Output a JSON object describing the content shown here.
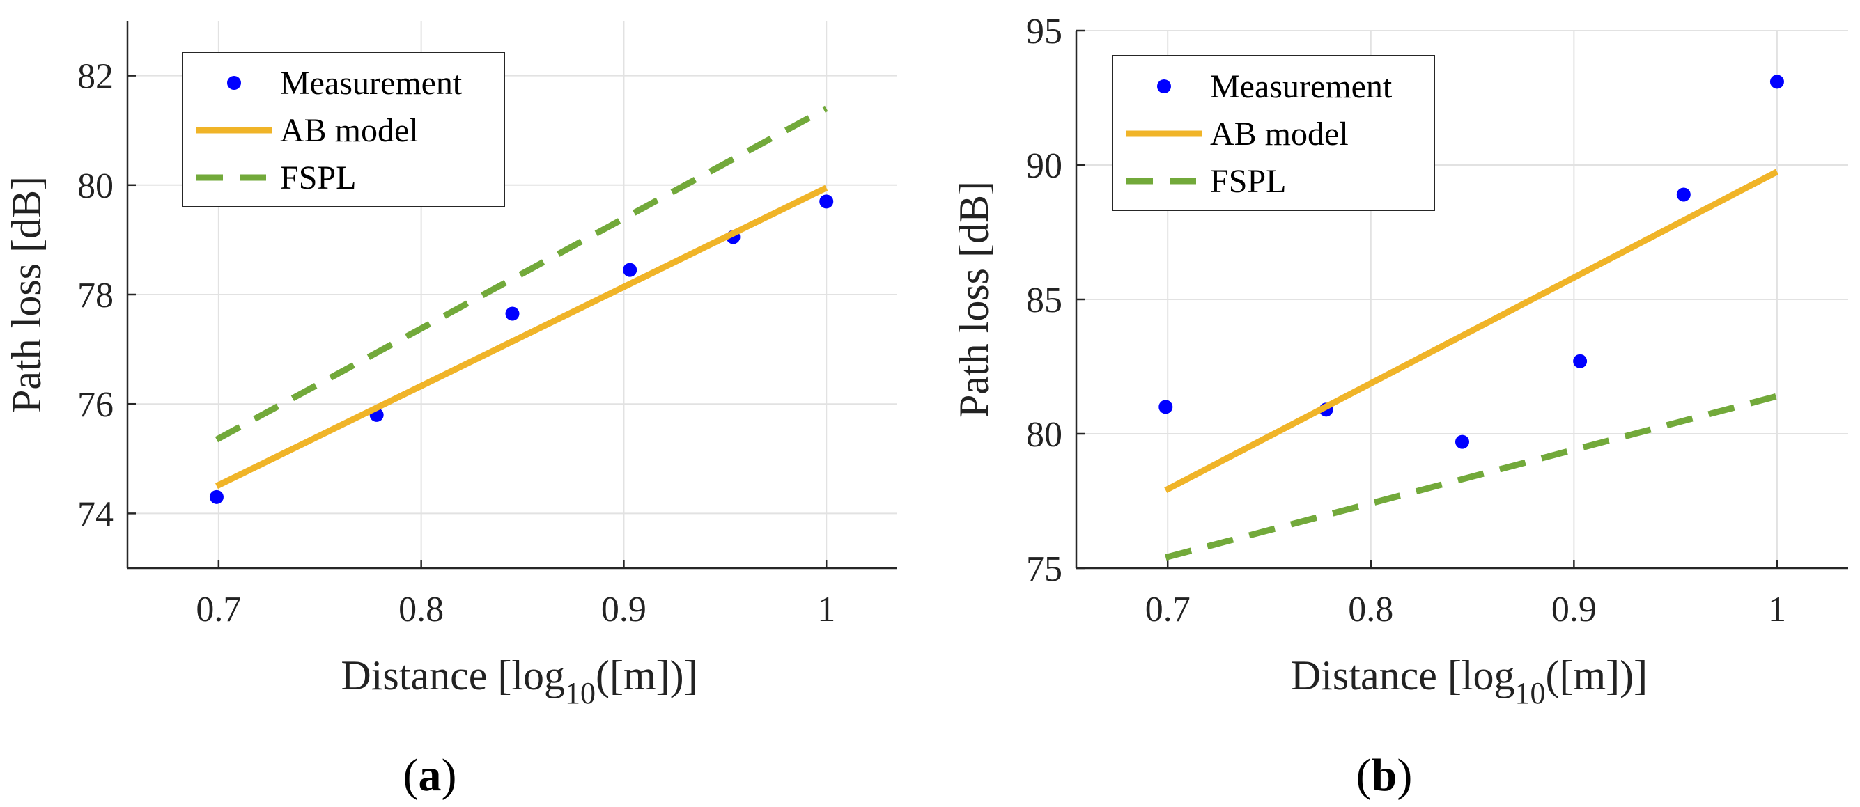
{
  "chart_data": [
    {
      "type": "scatter+line",
      "panel_caption_letter": "a",
      "xlabel": "Distance [log",
      "xlabel_sub": "10",
      "xlabel_end": "([m])]",
      "ylabel": "Path loss [dB]",
      "xlim": [
        0.655,
        1.035
      ],
      "ylim": [
        73,
        83
      ],
      "xticks": [
        0.7,
        0.8,
        0.9,
        1
      ],
      "xtick_labels": [
        "0.7",
        "0.8",
        "0.9",
        "1"
      ],
      "yticks": [
        74,
        76,
        78,
        80,
        82
      ],
      "ytick_labels": [
        "74",
        "76",
        "78",
        "80",
        "82"
      ],
      "grid": true,
      "legend_position": "top-left",
      "series": [
        {
          "name": "Measurement",
          "kind": "markers",
          "color": "#0000ff",
          "x": [
            0.699,
            0.778,
            0.845,
            0.903,
            0.954,
            1.0
          ],
          "y": [
            74.3,
            75.8,
            77.65,
            78.45,
            79.05,
            79.7
          ]
        },
        {
          "name": "AB model",
          "kind": "solid",
          "color": "#f0b428",
          "x": [
            0.699,
            1.0
          ],
          "y": [
            74.5,
            79.95
          ]
        },
        {
          "name": "FSPL",
          "kind": "dashed",
          "color": "#72a93a",
          "x": [
            0.699,
            1.0
          ],
          "y": [
            75.35,
            81.4
          ]
        }
      ]
    },
    {
      "type": "scatter+line",
      "panel_caption_letter": "b",
      "xlabel": "Distance [log",
      "xlabel_sub": "10",
      "xlabel_end": "([m])]",
      "ylabel": "Path loss [dB]",
      "xlim": [
        0.655,
        1.035
      ],
      "ylim": [
        75,
        95
      ],
      "xticks": [
        0.7,
        0.8,
        0.9,
        1
      ],
      "xtick_labels": [
        "0.7",
        "0.8",
        "0.9",
        "1"
      ],
      "yticks": [
        75,
        80,
        85,
        90,
        95
      ],
      "ytick_labels": [
        "75",
        "80",
        "85",
        "90",
        "95"
      ],
      "grid": true,
      "legend_position": "top-left",
      "series": [
        {
          "name": "Measurement",
          "kind": "markers",
          "color": "#0000ff",
          "x": [
            0.699,
            0.778,
            0.845,
            0.903,
            0.954,
            1.0
          ],
          "y": [
            81.0,
            80.9,
            79.7,
            82.7,
            88.9,
            93.1
          ]
        },
        {
          "name": "AB model",
          "kind": "solid",
          "color": "#f0b428",
          "x": [
            0.699,
            1.0
          ],
          "y": [
            77.9,
            89.75
          ]
        },
        {
          "name": "FSPL",
          "kind": "dashed",
          "color": "#72a93a",
          "x": [
            0.699,
            1.0
          ],
          "y": [
            75.4,
            81.4
          ]
        }
      ]
    }
  ]
}
